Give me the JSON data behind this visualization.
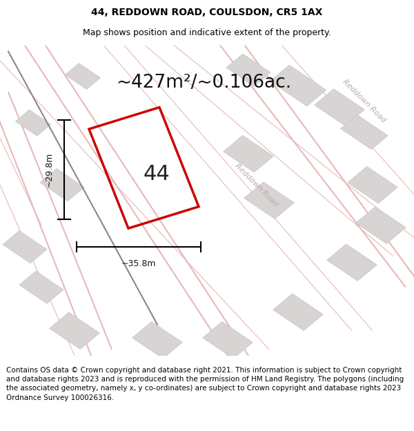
{
  "title_line1": "44, REDDOWN ROAD, COULSDON, CR5 1AX",
  "title_line2": "Map shows position and indicative extent of the property.",
  "area_text": "~427m²/~0.106ac.",
  "label_number": "44",
  "dim_width": "~35.8m",
  "dim_height": "~29.8m",
  "road_label1": "Reddown Road",
  "road_label2": "Reddown Road",
  "footer_text": "Contains OS data © Crown copyright and database right 2021. This information is subject to Crown copyright and database rights 2023 and is reproduced with the permission of HM Land Registry. The polygons (including the associated geometry, namely x, y co-ordinates) are subject to Crown copyright and database rights 2023 Ordnance Survey 100026316.",
  "bg_color": "#f5f5f5",
  "map_bg": "#f0eeee",
  "building_color": "#d8d4d4",
  "road_line_color": "#e8b8b8",
  "plot_outline_color": "#cc0000",
  "dim_line_color": "#000000",
  "title_fontsize": 10,
  "subtitle_fontsize": 9,
  "area_fontsize": 19,
  "number_fontsize": 22,
  "footer_fontsize": 7.5
}
